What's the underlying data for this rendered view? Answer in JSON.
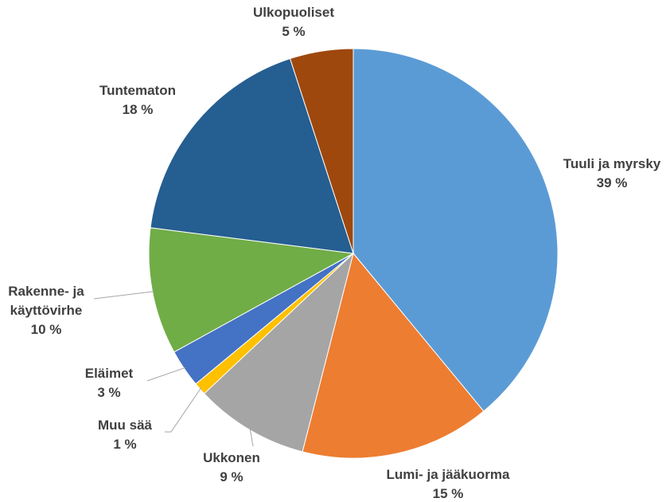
{
  "chart_data": {
    "type": "pie",
    "categories": [
      "Tuuli ja myrsky",
      "Lumi- ja jääkuorma",
      "Ukkonen",
      "Muu sää",
      "Eläimet",
      "Rakenne- ja käyttövirhe",
      "Tuntematon",
      "Ulkopuoliset"
    ],
    "values": [
      39,
      15,
      9,
      1,
      3,
      10,
      18,
      5
    ],
    "value_labels": [
      "39 %",
      "15 %",
      "9 %",
      "1 %",
      "3 %",
      "10 %",
      "18 %",
      "5 %"
    ],
    "colors": [
      "#5b9bd5",
      "#ed7d31",
      "#a5a5a5",
      "#ffc000",
      "#4472c4",
      "#70ad47",
      "#255e91",
      "#9e480e"
    ]
  }
}
